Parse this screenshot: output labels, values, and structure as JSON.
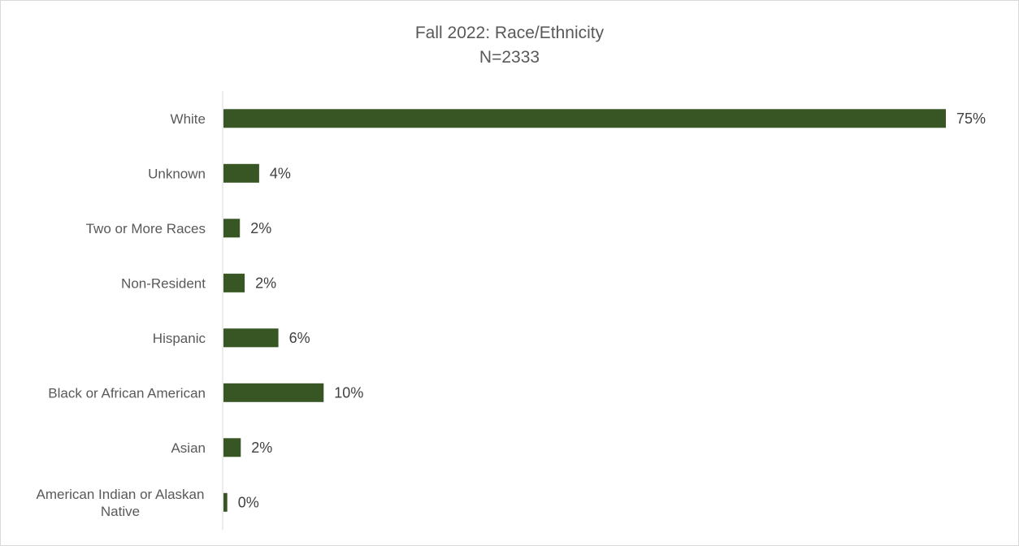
{
  "chart_data": {
    "type": "bar",
    "orientation": "horizontal",
    "title": "Fall 2022: Race/Ethnicity",
    "subtitle": "N=2333",
    "categories": [
      "White",
      "Unknown",
      "Two or More Races",
      "Non-Resident",
      "Hispanic",
      "Black or African American",
      "Asian",
      "American Indian or Alaskan Native"
    ],
    "category_lines": [
      [
        "White"
      ],
      [
        "Unknown"
      ],
      [
        "Two or More Races"
      ],
      [
        "Non-Resident"
      ],
      [
        "Hispanic"
      ],
      [
        "Black or African American"
      ],
      [
        "Asian"
      ],
      [
        "American Indian or Alaskan",
        "Native"
      ]
    ],
    "values": [
      75,
      3.7,
      1.7,
      2.2,
      5.7,
      10.4,
      1.8,
      0.4
    ],
    "data_labels": [
      "75%",
      "4%",
      "2%",
      "2%",
      "6%",
      "10%",
      "2%",
      "0%"
    ],
    "bar_color": "#375623",
    "xlim": [
      0,
      75
    ],
    "grid": false,
    "legend": "none"
  }
}
